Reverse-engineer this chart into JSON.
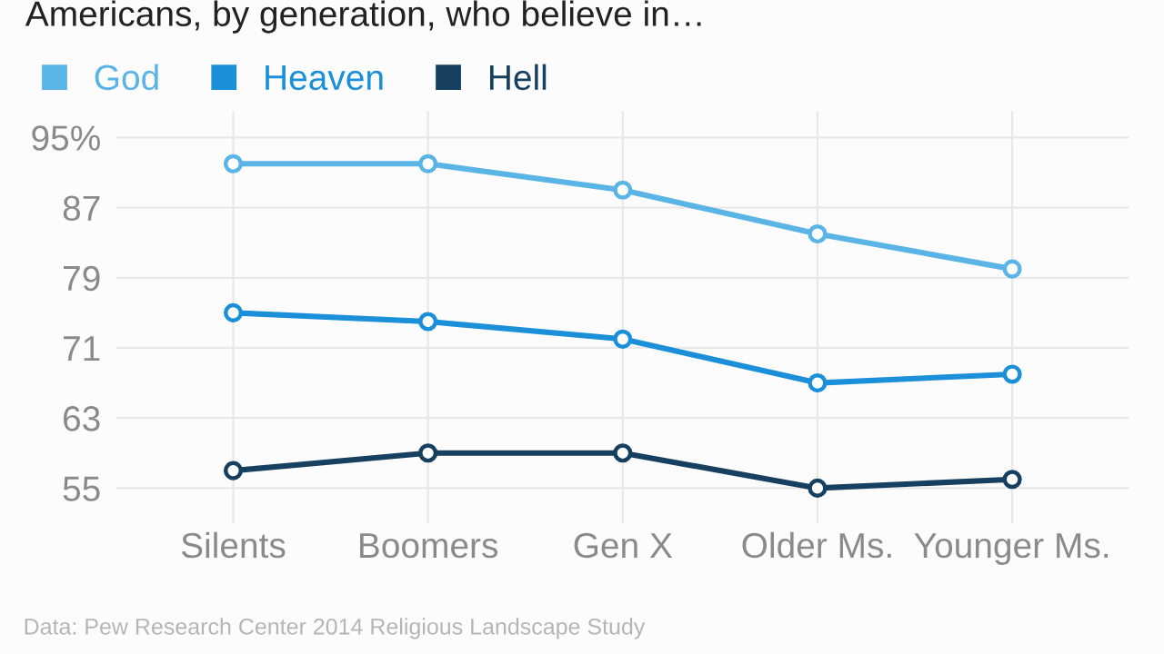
{
  "chart_data": {
    "type": "line",
    "title": "Americans, by generation, who believe in…",
    "categories": [
      "Silents",
      "Boomers",
      "Gen X",
      "Older Ms.",
      "Younger Ms."
    ],
    "series": [
      {
        "name": "God",
        "color": "#5ab4e5",
        "values": [
          92,
          92,
          89,
          84,
          80
        ]
      },
      {
        "name": "Heaven",
        "color": "#1b8fd8",
        "values": [
          75,
          74,
          72,
          67,
          68
        ]
      },
      {
        "name": "Hell",
        "color": "#173f5f",
        "values": [
          57,
          59,
          59,
          55,
          56
        ]
      }
    ],
    "ylim": [
      51,
      98
    ],
    "yticks": [
      55,
      63,
      71,
      79,
      87,
      {
        "value": 95,
        "label": "95%"
      }
    ],
    "grid": true,
    "legend": "top left",
    "marker": "circle",
    "line_style": "solid",
    "annotations": [
      "Data: Pew Research Center 2014 Religious Landscape Study"
    ]
  }
}
